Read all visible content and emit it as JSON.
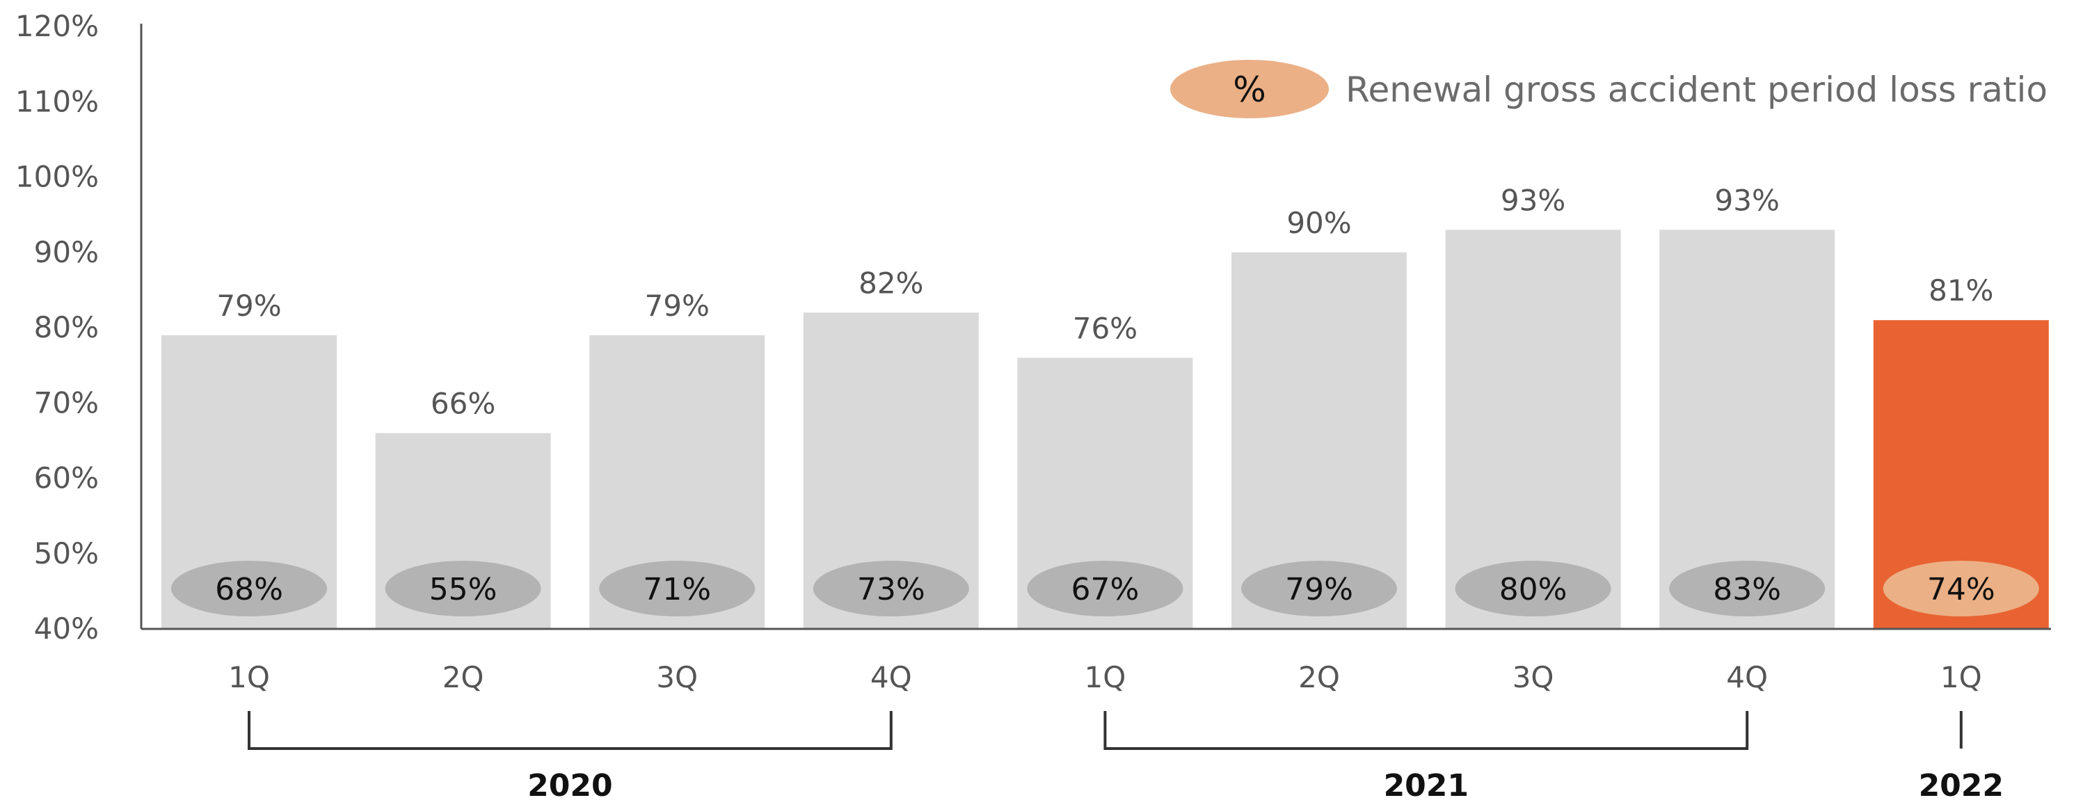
{
  "chart_data": {
    "type": "bar",
    "categories": [
      "1Q",
      "2Q",
      "3Q",
      "4Q",
      "1Q",
      "2Q",
      "3Q",
      "4Q",
      "1Q"
    ],
    "groups": [
      {
        "label": "2020",
        "first": 0,
        "last": 3
      },
      {
        "label": "2021",
        "first": 4,
        "last": 7
      },
      {
        "label": "2022",
        "first": 8,
        "last": 8
      }
    ],
    "values": [
      79,
      66,
      79,
      82,
      76,
      90,
      93,
      93,
      81
    ],
    "value_labels": [
      "79%",
      "66%",
      "79%",
      "82%",
      "76%",
      "90%",
      "93%",
      "93%",
      "81%"
    ],
    "series": [
      {
        "name": "Renewal gross accident period loss ratio",
        "values": [
          68,
          55,
          71,
          73,
          67,
          79,
          80,
          83,
          74
        ],
        "labels": [
          "68%",
          "55%",
          "71%",
          "73%",
          "67%",
          "79%",
          "80%",
          "83%",
          "74%"
        ]
      }
    ],
    "highlight_index": 8,
    "ylim": [
      40,
      120
    ],
    "yticks": [
      "40%",
      "50%",
      "60%",
      "70%",
      "80%",
      "90%",
      "100%",
      "110%",
      "120%"
    ],
    "legend": {
      "symbol": "%",
      "label": "Renewal gross accident period loss ratio",
      "position": "top-right"
    },
    "grid": false,
    "colors": {
      "bar": "#d9d9d9",
      "bar_highlight": "#e96332",
      "oval": "#b3b3b3",
      "oval_highlight": "#ebb086",
      "legend_oval": "#ebb086",
      "axis": "#555555"
    }
  }
}
